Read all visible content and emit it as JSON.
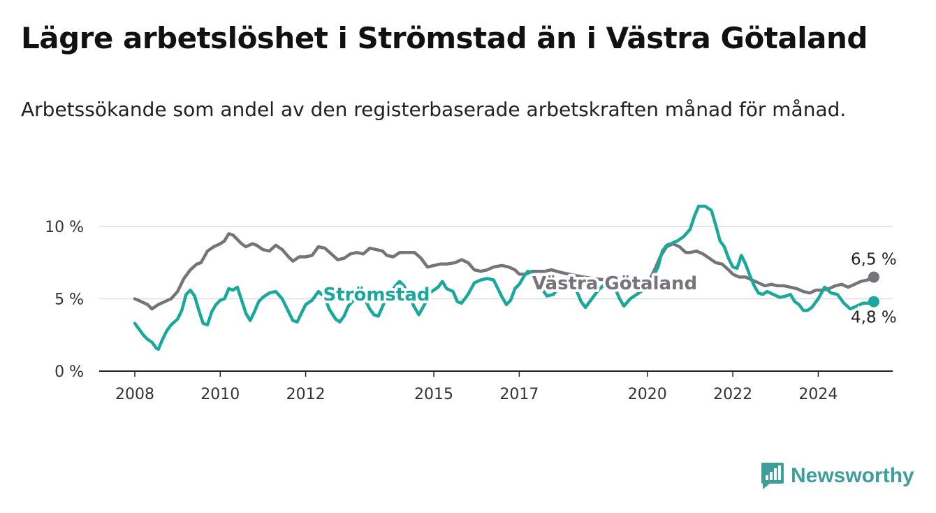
{
  "title": "Lägre arbetslöshet i Strömstad än i Västra Götaland",
  "subtitle": "Arbetssökande som andel av den registerbaserade arbetskraften månad för månad.",
  "brand": {
    "name": "Newsworthy",
    "color": "#3e9e9a"
  },
  "chart_data": {
    "type": "line",
    "xlabel": "",
    "ylabel": "",
    "xlim": [
      2008,
      2025.6
    ],
    "ylim": [
      0,
      10
    ],
    "grid": true,
    "x_ticks": [
      2008,
      2010,
      2012,
      2015,
      2017,
      2020,
      2022,
      2024
    ],
    "x_tick_labels": [
      "2008",
      "2010",
      "2012",
      "2015",
      "2017",
      "2020",
      "2022",
      "2024"
    ],
    "y_ticks": [
      0,
      5,
      10
    ],
    "y_tick_labels": [
      "0 %",
      "5 %",
      "10 %"
    ],
    "series": [
      {
        "name": "Västra Götaland",
        "color": "#76737a",
        "end_label": "6,5 %",
        "points": [
          [
            2008.0,
            5.0
          ],
          [
            2008.15,
            4.8
          ],
          [
            2008.3,
            4.6
          ],
          [
            2008.4,
            4.3
          ],
          [
            2008.55,
            4.6
          ],
          [
            2008.7,
            4.8
          ],
          [
            2008.85,
            5.0
          ],
          [
            2009.0,
            5.5
          ],
          [
            2009.15,
            6.4
          ],
          [
            2009.3,
            7.0
          ],
          [
            2009.45,
            7.4
          ],
          [
            2009.55,
            7.5
          ],
          [
            2009.7,
            8.3
          ],
          [
            2009.85,
            8.6
          ],
          [
            2010.0,
            8.8
          ],
          [
            2010.1,
            9.0
          ],
          [
            2010.2,
            9.5
          ],
          [
            2010.3,
            9.4
          ],
          [
            2010.4,
            9.1
          ],
          [
            2010.5,
            8.8
          ],
          [
            2010.6,
            8.6
          ],
          [
            2010.75,
            8.8
          ],
          [
            2010.85,
            8.7
          ],
          [
            2011.0,
            8.4
          ],
          [
            2011.15,
            8.3
          ],
          [
            2011.3,
            8.7
          ],
          [
            2011.45,
            8.4
          ],
          [
            2011.6,
            7.9
          ],
          [
            2011.7,
            7.6
          ],
          [
            2011.85,
            7.9
          ],
          [
            2012.0,
            7.9
          ],
          [
            2012.15,
            8.0
          ],
          [
            2012.3,
            8.6
          ],
          [
            2012.45,
            8.5
          ],
          [
            2012.6,
            8.1
          ],
          [
            2012.75,
            7.7
          ],
          [
            2012.9,
            7.8
          ],
          [
            2013.05,
            8.1
          ],
          [
            2013.2,
            8.2
          ],
          [
            2013.35,
            8.1
          ],
          [
            2013.5,
            8.5
          ],
          [
            2013.65,
            8.4
          ],
          [
            2013.8,
            8.3
          ],
          [
            2013.9,
            8.0
          ],
          [
            2014.05,
            7.9
          ],
          [
            2014.2,
            8.2
          ],
          [
            2014.35,
            8.2
          ],
          [
            2014.55,
            8.2
          ],
          [
            2014.7,
            7.8
          ],
          [
            2014.85,
            7.2
          ],
          [
            2015.0,
            7.3
          ],
          [
            2015.15,
            7.4
          ],
          [
            2015.3,
            7.4
          ],
          [
            2015.5,
            7.5
          ],
          [
            2015.65,
            7.7
          ],
          [
            2015.8,
            7.5
          ],
          [
            2015.95,
            7.0
          ],
          [
            2016.1,
            6.9
          ],
          [
            2016.25,
            7.0
          ],
          [
            2016.4,
            7.2
          ],
          [
            2016.6,
            7.3
          ],
          [
            2016.75,
            7.2
          ],
          [
            2016.9,
            7.0
          ],
          [
            2017.0,
            6.7
          ],
          [
            2017.15,
            6.7
          ],
          [
            2017.3,
            6.9
          ],
          [
            2017.5,
            6.9
          ],
          [
            2017.6,
            6.9
          ],
          [
            2017.75,
            7.0
          ],
          [
            2018.0,
            6.8
          ],
          [
            2018.5,
            6.5
          ],
          [
            2019.0,
            6.3
          ],
          [
            2019.5,
            6.2
          ],
          [
            2019.9,
            6.1
          ],
          [
            2020.0,
            6.0
          ],
          [
            2020.1,
            6.6
          ],
          [
            2020.2,
            7.2
          ],
          [
            2020.3,
            7.9
          ],
          [
            2020.45,
            8.6
          ],
          [
            2020.6,
            8.8
          ],
          [
            2020.75,
            8.6
          ],
          [
            2020.9,
            8.2
          ],
          [
            2021.0,
            8.2
          ],
          [
            2021.15,
            8.3
          ],
          [
            2021.3,
            8.1
          ],
          [
            2021.45,
            7.8
          ],
          [
            2021.6,
            7.5
          ],
          [
            2021.75,
            7.4
          ],
          [
            2021.9,
            7.0
          ],
          [
            2022.0,
            6.7
          ],
          [
            2022.15,
            6.5
          ],
          [
            2022.3,
            6.5
          ],
          [
            2022.45,
            6.3
          ],
          [
            2022.6,
            6.1
          ],
          [
            2022.75,
            5.9
          ],
          [
            2022.9,
            6.0
          ],
          [
            2023.05,
            5.9
          ],
          [
            2023.2,
            5.9
          ],
          [
            2023.35,
            5.8
          ],
          [
            2023.5,
            5.7
          ],
          [
            2023.65,
            5.5
          ],
          [
            2023.8,
            5.4
          ],
          [
            2023.95,
            5.6
          ],
          [
            2024.1,
            5.6
          ],
          [
            2024.25,
            5.7
          ],
          [
            2024.4,
            5.9
          ],
          [
            2024.55,
            6.0
          ],
          [
            2024.7,
            5.8
          ],
          [
            2024.85,
            6.0
          ],
          [
            2025.0,
            6.2
          ],
          [
            2025.15,
            6.3
          ],
          [
            2025.3,
            6.5
          ]
        ]
      },
      {
        "name": "Strömstad",
        "color": "#1aa89c",
        "end_label": "4,8 %",
        "points": [
          [
            2008.0,
            3.3
          ],
          [
            2008.1,
            2.9
          ],
          [
            2008.2,
            2.5
          ],
          [
            2008.3,
            2.2
          ],
          [
            2008.4,
            2.0
          ],
          [
            2008.5,
            1.6
          ],
          [
            2008.55,
            1.5
          ],
          [
            2008.65,
            2.2
          ],
          [
            2008.75,
            2.8
          ],
          [
            2008.85,
            3.2
          ],
          [
            2009.0,
            3.6
          ],
          [
            2009.1,
            4.2
          ],
          [
            2009.2,
            5.3
          ],
          [
            2009.3,
            5.6
          ],
          [
            2009.4,
            5.2
          ],
          [
            2009.5,
            4.2
          ],
          [
            2009.6,
            3.3
          ],
          [
            2009.7,
            3.2
          ],
          [
            2009.8,
            4.1
          ],
          [
            2009.9,
            4.6
          ],
          [
            2010.0,
            4.9
          ],
          [
            2010.1,
            5.0
          ],
          [
            2010.2,
            5.7
          ],
          [
            2010.3,
            5.6
          ],
          [
            2010.4,
            5.8
          ],
          [
            2010.5,
            4.9
          ],
          [
            2010.6,
            4.0
          ],
          [
            2010.7,
            3.5
          ],
          [
            2010.8,
            4.1
          ],
          [
            2010.9,
            4.8
          ],
          [
            2011.0,
            5.1
          ],
          [
            2011.15,
            5.4
          ],
          [
            2011.3,
            5.5
          ],
          [
            2011.45,
            5.0
          ],
          [
            2011.55,
            4.4
          ],
          [
            2011.7,
            3.5
          ],
          [
            2011.8,
            3.4
          ],
          [
            2011.9,
            4.0
          ],
          [
            2012.0,
            4.6
          ],
          [
            2012.15,
            4.9
          ],
          [
            2012.3,
            5.5
          ],
          [
            2012.45,
            5.1
          ],
          [
            2012.55,
            4.3
          ],
          [
            2012.7,
            3.6
          ],
          [
            2012.8,
            3.4
          ],
          [
            2012.9,
            3.8
          ],
          [
            2013.0,
            4.5
          ],
          [
            2013.15,
            5.0
          ],
          [
            2013.3,
            5.2
          ],
          [
            2013.4,
            4.9
          ],
          [
            2013.5,
            4.3
          ],
          [
            2013.6,
            3.9
          ],
          [
            2013.7,
            3.8
          ],
          [
            2013.85,
            4.8
          ],
          [
            2014.0,
            5.4
          ],
          [
            2014.1,
            5.9
          ],
          [
            2014.2,
            6.2
          ],
          [
            2014.3,
            5.9
          ],
          [
            2014.45,
            5.0
          ],
          [
            2014.55,
            4.4
          ],
          [
            2014.65,
            3.9
          ],
          [
            2014.8,
            4.7
          ],
          [
            2014.9,
            5.4
          ],
          [
            2015.0,
            5.6
          ],
          [
            2015.1,
            5.8
          ],
          [
            2015.2,
            6.2
          ],
          [
            2015.3,
            5.7
          ],
          [
            2015.45,
            5.5
          ],
          [
            2015.55,
            4.8
          ],
          [
            2015.65,
            4.7
          ],
          [
            2015.8,
            5.3
          ],
          [
            2015.95,
            6.1
          ],
          [
            2016.1,
            6.3
          ],
          [
            2016.25,
            6.4
          ],
          [
            2016.4,
            6.3
          ],
          [
            2016.5,
            5.7
          ],
          [
            2016.6,
            5.1
          ],
          [
            2016.7,
            4.6
          ],
          [
            2016.8,
            4.9
          ],
          [
            2016.9,
            5.7
          ],
          [
            2017.0,
            6.0
          ],
          [
            2017.1,
            6.5
          ],
          [
            2017.2,
            6.9
          ],
          [
            2017.3,
            6.8
          ],
          [
            2017.45,
            6.2
          ],
          [
            2017.55,
            5.6
          ],
          [
            2017.65,
            5.2
          ],
          [
            2017.8,
            5.3
          ],
          [
            2017.95,
            5.9
          ],
          [
            2018.1,
            6.4
          ],
          [
            2018.25,
            6.4
          ],
          [
            2018.35,
            5.5
          ],
          [
            2018.45,
            4.8
          ],
          [
            2018.55,
            4.4
          ],
          [
            2018.7,
            5.0
          ],
          [
            2018.85,
            5.6
          ],
          [
            2019.0,
            6.0
          ],
          [
            2019.15,
            6.3
          ],
          [
            2019.25,
            5.7
          ],
          [
            2019.35,
            5.0
          ],
          [
            2019.45,
            4.5
          ],
          [
            2019.6,
            5.0
          ],
          [
            2019.75,
            5.3
          ],
          [
            2019.9,
            5.6
          ],
          [
            2020.05,
            6.1
          ],
          [
            2020.15,
            6.6
          ],
          [
            2020.25,
            7.2
          ],
          [
            2020.35,
            8.3
          ],
          [
            2020.45,
            8.7
          ],
          [
            2020.55,
            8.8
          ],
          [
            2020.7,
            9.0
          ],
          [
            2020.85,
            9.3
          ],
          [
            2021.0,
            9.8
          ],
          [
            2021.1,
            10.7
          ],
          [
            2021.2,
            11.4
          ],
          [
            2021.35,
            11.4
          ],
          [
            2021.5,
            11.1
          ],
          [
            2021.6,
            10.1
          ],
          [
            2021.7,
            9.0
          ],
          [
            2021.8,
            8.6
          ],
          [
            2021.9,
            7.8
          ],
          [
            2022.0,
            7.2
          ],
          [
            2022.1,
            7.1
          ],
          [
            2022.2,
            8.0
          ],
          [
            2022.3,
            7.4
          ],
          [
            2022.4,
            6.6
          ],
          [
            2022.5,
            5.9
          ],
          [
            2022.6,
            5.4
          ],
          [
            2022.7,
            5.3
          ],
          [
            2022.8,
            5.5
          ],
          [
            2022.95,
            5.3
          ],
          [
            2023.1,
            5.1
          ],
          [
            2023.25,
            5.2
          ],
          [
            2023.35,
            5.3
          ],
          [
            2023.45,
            4.8
          ],
          [
            2023.55,
            4.6
          ],
          [
            2023.65,
            4.2
          ],
          [
            2023.75,
            4.2
          ],
          [
            2023.85,
            4.4
          ],
          [
            2024.0,
            5.0
          ],
          [
            2024.15,
            5.8
          ],
          [
            2024.3,
            5.4
          ],
          [
            2024.45,
            5.3
          ],
          [
            2024.6,
            4.7
          ],
          [
            2024.75,
            4.3
          ],
          [
            2024.9,
            4.5
          ],
          [
            2025.05,
            4.7
          ],
          [
            2025.2,
            4.7
          ],
          [
            2025.3,
            4.8
          ]
        ]
      }
    ]
  }
}
